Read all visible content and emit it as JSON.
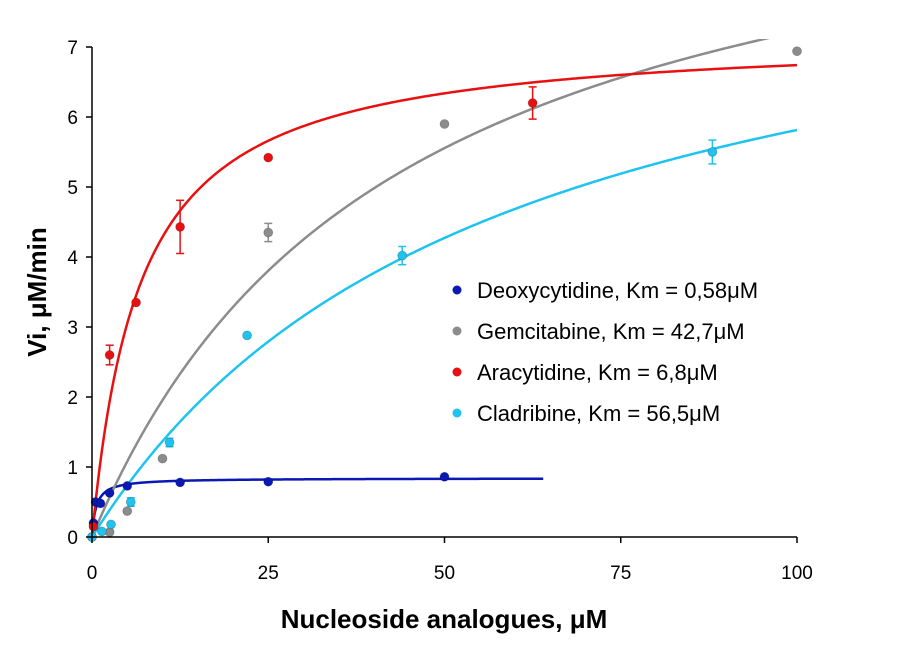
{
  "chart_data": {
    "type": "scatter",
    "title": "",
    "xlabel": "Nucleoside analogues, μM",
    "ylabel": "Vi, μM/min",
    "xlim": [
      0,
      100
    ],
    "ylim": [
      0,
      7
    ],
    "xticks": [
      0,
      25,
      50,
      75,
      100
    ],
    "xtick_labels": [
      "0",
      "25",
      "50",
      "75",
      "100"
    ],
    "yticks": [
      0,
      1,
      2,
      3,
      4,
      5,
      6,
      7
    ],
    "ytick_labels": [
      "0",
      "1",
      "2",
      "3",
      "4",
      "5",
      "6",
      "7"
    ],
    "grid": false,
    "legend_position": "right",
    "series": [
      {
        "name": "Deoxycytidine, Km = 0,58μM",
        "color": "#0a18b4",
        "km": 0.58,
        "vmax": 0.84,
        "fit_range": [
          0,
          64
        ],
        "points": [
          {
            "x": 0.2,
            "y": 0.2,
            "err": 0
          },
          {
            "x": 0.5,
            "y": 0.5,
            "err": 0
          },
          {
            "x": 1.2,
            "y": 0.48,
            "err": 0
          },
          {
            "x": 2.5,
            "y": 0.63,
            "err": 0
          },
          {
            "x": 5,
            "y": 0.73,
            "err": 0
          },
          {
            "x": 12.5,
            "y": 0.78,
            "err": 0
          },
          {
            "x": 25,
            "y": 0.79,
            "err": 0
          },
          {
            "x": 50,
            "y": 0.86,
            "err": 0
          }
        ]
      },
      {
        "name": "Gemcitabine, Km = 42,7μM",
        "color": "#8c8c8c",
        "km": 42.7,
        "vmax": 10.3,
        "fit_range": [
          0,
          100
        ],
        "points": [
          {
            "x": 0,
            "y": 0.0,
            "err": 0
          },
          {
            "x": 2.5,
            "y": 0.07,
            "err": 0
          },
          {
            "x": 5,
            "y": 0.37,
            "err": 0
          },
          {
            "x": 10,
            "y": 1.12,
            "err": 0
          },
          {
            "x": 25,
            "y": 4.35,
            "err": 0.13
          },
          {
            "x": 50,
            "y": 5.9,
            "err": 0
          },
          {
            "x": 100,
            "y": 6.94,
            "err": 0
          }
        ]
      },
      {
        "name": "Aracytidine, Km = 6,8μM",
        "color": "#e81010",
        "km": 6.8,
        "vmax": 7.2,
        "fit_range": [
          0,
          100
        ],
        "points": [
          {
            "x": 0.2,
            "y": 0.15,
            "err": 0
          },
          {
            "x": 2.5,
            "y": 2.6,
            "err": 0.14
          },
          {
            "x": 6.25,
            "y": 3.35,
            "err": 0
          },
          {
            "x": 12.5,
            "y": 4.43,
            "err": 0.38
          },
          {
            "x": 25,
            "y": 5.42,
            "err": 0
          },
          {
            "x": 62.5,
            "y": 6.2,
            "err": 0.23
          }
        ]
      },
      {
        "name": "Cladribine, Km = 56,5μM",
        "color": "#1ec3f0",
        "km": 56.5,
        "vmax": 9.1,
        "fit_range": [
          0,
          100
        ],
        "points": [
          {
            "x": 0,
            "y": 0.0,
            "err": 0
          },
          {
            "x": 1.4,
            "y": 0.08,
            "err": 0
          },
          {
            "x": 2.7,
            "y": 0.18,
            "err": 0
          },
          {
            "x": 5.5,
            "y": 0.5,
            "err": 0.06
          },
          {
            "x": 11,
            "y": 1.35,
            "err": 0.06
          },
          {
            "x": 22,
            "y": 2.88,
            "err": 0
          },
          {
            "x": 44,
            "y": 4.02,
            "err": 0.13
          },
          {
            "x": 88,
            "y": 5.5,
            "err": 0.17
          }
        ]
      }
    ]
  }
}
